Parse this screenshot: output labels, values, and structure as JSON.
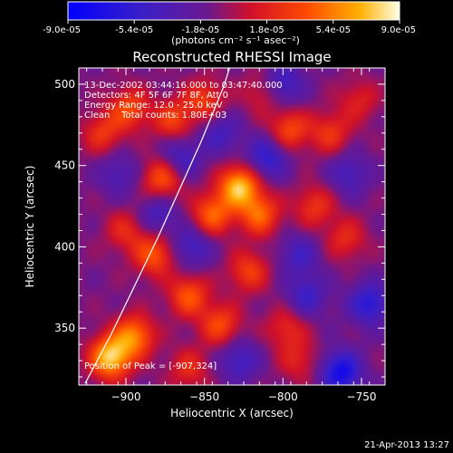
{
  "chart_data": {
    "type": "heatmap",
    "title": "Reconstructed RHESSI Image",
    "xlabel": "Heliocentric X (arcsec)",
    "ylabel": "Heliocentric Y (arcsec)",
    "xlim": [
      -930,
      -735
    ],
    "ylim": [
      315,
      510
    ],
    "xticks": [
      -900,
      -850,
      -800,
      -750
    ],
    "yticks": [
      350,
      400,
      450,
      500
    ],
    "colorbar": {
      "ticks": [
        "-9.0e-05",
        "-5.4e-05",
        "-1.8e-05",
        "1.8e-05",
        "5.4e-05",
        "9.0e-05"
      ],
      "min": -9e-05,
      "max": 9e-05
    },
    "units_line": "(photons cm⁻² s⁻¹ asec⁻²)",
    "info_lines": [
      "13-Dec-2002 03:44:16.000 to 03:47:40.000",
      "Detectors: 4F 5F 6F 7F 8F, Att 0",
      "Energy Range: 12.0 - 25.0 keV",
      "Clean    Total counts: 1.80E+03"
    ],
    "peak_label": "Position of Peak = [-907,324]",
    "peak_position": [
      -907,
      324
    ],
    "timestamp": "21-Apr-2013 13:27",
    "limb_curve": [
      [
        -926,
        316
      ],
      [
        -910,
        345
      ],
      [
        -895,
        375
      ],
      [
        -880,
        405
      ],
      [
        -866,
        435
      ],
      [
        -852,
        465
      ],
      [
        -838,
        498
      ],
      [
        -834,
        510
      ]
    ],
    "peaks": [
      {
        "x": -910,
        "y": 332,
        "v": 0.95
      },
      {
        "x": -895,
        "y": 345,
        "v": 0.7
      },
      {
        "x": -882,
        "y": 395,
        "v": 0.55
      },
      {
        "x": -860,
        "y": 370,
        "v": 0.55
      },
      {
        "x": -845,
        "y": 420,
        "v": 0.6
      },
      {
        "x": -828,
        "y": 437,
        "v": 0.9
      },
      {
        "x": -815,
        "y": 420,
        "v": 0.6
      },
      {
        "x": -877,
        "y": 442,
        "v": 0.55
      },
      {
        "x": -870,
        "y": 478,
        "v": 0.45
      },
      {
        "x": -898,
        "y": 485,
        "v": 0.5
      },
      {
        "x": -915,
        "y": 470,
        "v": 0.4
      },
      {
        "x": -850,
        "y": 490,
        "v": 0.45
      },
      {
        "x": -822,
        "y": 385,
        "v": 0.45
      },
      {
        "x": -840,
        "y": 352,
        "v": 0.5
      },
      {
        "x": -796,
        "y": 472,
        "v": 0.5
      },
      {
        "x": -770,
        "y": 470,
        "v": 0.4
      },
      {
        "x": -780,
        "y": 425,
        "v": 0.4
      },
      {
        "x": -798,
        "y": 350,
        "v": 0.35
      },
      {
        "x": -760,
        "y": 405,
        "v": 0.35
      },
      {
        "x": -790,
        "y": 330,
        "v": 0.3
      },
      {
        "x": -860,
        "y": 325,
        "v": 0.35
      },
      {
        "x": -900,
        "y": 410,
        "v": 0.35
      },
      {
        "x": -752,
        "y": 490,
        "v": 0.3
      },
      {
        "x": -813,
        "y": 495,
        "v": 0.3
      }
    ],
    "troughs": [
      {
        "x": -865,
        "y": 455,
        "v": 0.4
      },
      {
        "x": -800,
        "y": 500,
        "v": 0.45
      },
      {
        "x": -810,
        "y": 455,
        "v": 0.5
      },
      {
        "x": -758,
        "y": 445,
        "v": 0.35
      },
      {
        "x": -763,
        "y": 323,
        "v": 0.7
      },
      {
        "x": -745,
        "y": 365,
        "v": 0.55
      },
      {
        "x": -790,
        "y": 395,
        "v": 0.35
      },
      {
        "x": -880,
        "y": 420,
        "v": 0.35
      },
      {
        "x": -858,
        "y": 400,
        "v": 0.4
      },
      {
        "x": -828,
        "y": 330,
        "v": 0.4
      },
      {
        "x": -785,
        "y": 370,
        "v": 0.4
      },
      {
        "x": -905,
        "y": 445,
        "v": 0.3
      },
      {
        "x": -840,
        "y": 470,
        "v": 0.35
      }
    ]
  }
}
